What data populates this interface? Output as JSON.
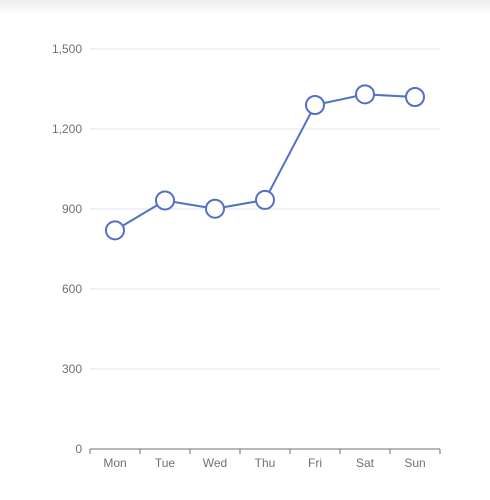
{
  "chart_data": {
    "type": "line",
    "categories": [
      "Mon",
      "Tue",
      "Wed",
      "Thu",
      "Fri",
      "Sat",
      "Sun"
    ],
    "series": [
      {
        "values": [
          820,
          932,
          901,
          934,
          1290,
          1330,
          1320
        ]
      }
    ],
    "ylim": [
      0,
      1500
    ],
    "yticks": [
      0,
      300,
      600,
      900,
      1200,
      1500
    ],
    "ytick_labels": [
      "0",
      "300",
      "600",
      "900",
      "1,200",
      "1,500"
    ],
    "grid": true,
    "title": "",
    "xlabel": "",
    "ylabel": "",
    "colors": {
      "line": "#5470c6",
      "marker_fill": "#ffffff",
      "grid": "#e0e6f1",
      "axis": "#6e7079",
      "text": "#6e7079"
    }
  }
}
